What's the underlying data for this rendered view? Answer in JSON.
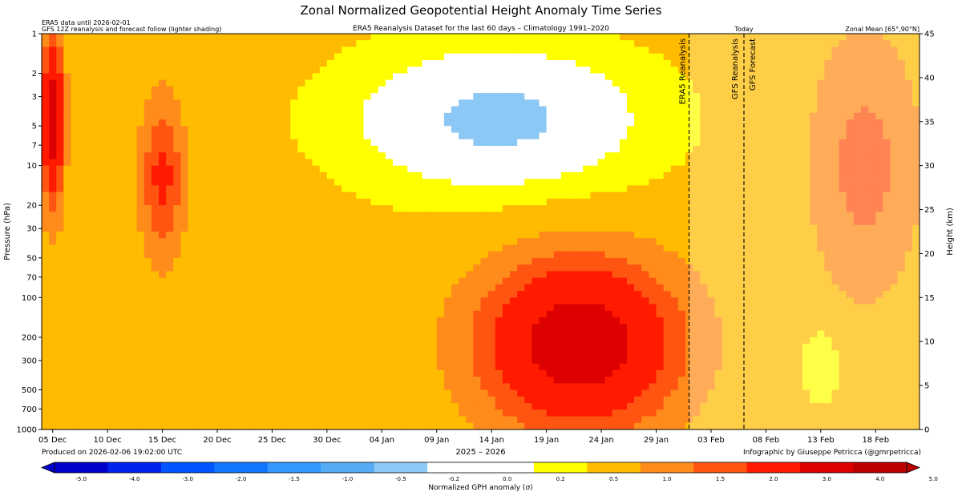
{
  "header": {
    "title": "Zonal Normalized Geopotential Height Anomaly Time Series",
    "info_line1": "ERA5 data until 2026-02-01",
    "info_line2": "GFS 12Z reanalysis and forecast follow (lighter shading)",
    "subtitle": "ERA5 Reanalysis Dataset for the last 60 days – Climatology 1991–2020",
    "zonal_mean": "Zonal Mean [65°,90°N]"
  },
  "footer": {
    "produced": "Produced on 2026-02-06 19:02:00 UTC",
    "credit": "Infographic by Giuseppe Petricca (@gmrpetricca)"
  },
  "chart_data": {
    "type": "heatmap",
    "title": "Zonal Normalized Geopotential Height Anomaly Time Series",
    "xlabel": "2025 – 2026",
    "ylabel": "Pressure (hPa)",
    "ylabel_right": "Height (km)",
    "x_ticks": [
      "05 Dec",
      "10 Dec",
      "15 Dec",
      "20 Dec",
      "25 Dec",
      "30 Dec",
      "04 Jan",
      "09 Jan",
      "14 Jan",
      "19 Jan",
      "24 Jan",
      "29 Jan",
      "03 Feb",
      "08 Feb",
      "13 Feb",
      "18 Feb"
    ],
    "x_range": [
      "2025-12-04",
      "2026-02-22"
    ],
    "y_ticks_hpa": [
      1000,
      700,
      500,
      300,
      200,
      100,
      70,
      50,
      30,
      20,
      10,
      7,
      5,
      3,
      2,
      1
    ],
    "y_scale": "log",
    "y_range_hpa": [
      1000,
      1
    ],
    "right_axis_km_ticks": [
      0,
      5,
      10,
      15,
      20,
      25,
      30,
      35,
      40,
      45
    ],
    "right_axis_km_range": [
      0,
      45
    ],
    "markers": [
      {
        "label": "ERA5 Reanalysis",
        "date": "2026-02-01",
        "style": "dashed"
      },
      {
        "label": "GFS Reanalysis",
        "date": "2026-02-06",
        "style": "dashed"
      },
      {
        "label": "GFS Forecast",
        "date": "2026-02-06",
        "style": "dashed"
      },
      {
        "label": "Today",
        "date": "2026-02-06",
        "style": "dashed"
      }
    ],
    "lighter_shading_from": "2026-02-01",
    "colorbar": {
      "label": "Normalized GPH anomaly (σ)",
      "levels": [
        -5.0,
        -4.0,
        -3.0,
        -2.0,
        -1.5,
        -1.0,
        -0.5,
        -0.2,
        0.0,
        0.2,
        0.5,
        1.0,
        1.5,
        2.0,
        3.0,
        4.0,
        5.0
      ],
      "tick_labels": [
        "-5.0",
        "-4.0",
        "-3.0",
        "-2.0",
        "-1.5",
        "-1.0",
        "-0.5",
        "-0.2",
        "0.0",
        "0.2",
        "0.5",
        "1.0",
        "1.5",
        "2.0",
        "3.0",
        "4.0",
        "5.0"
      ],
      "colors": [
        "#0000cc",
        "#0022ee",
        "#0055ff",
        "#1177ff",
        "#3399ff",
        "#55aaf5",
        "#8cc8f5",
        "#ffffff",
        "#ffffff",
        "#ffff00",
        "#ffbb00",
        "#ff8c1a",
        "#ff5511",
        "#ff1a00",
        "#dd0000",
        "#bb0000"
      ],
      "extend": "both"
    },
    "anomaly_regions": [
      {
        "name": "positive-early-december",
        "dates": [
          "2025-12-04",
          "2025-12-06"
        ],
        "levels_hpa": [
          1,
          20
        ],
        "value": 3.0
      },
      {
        "name": "positive-mid-december",
        "dates": [
          "2025-12-13",
          "2025-12-17"
        ],
        "levels_hpa": [
          3,
          50
        ],
        "value": 1.5
      },
      {
        "name": "negative-upper-january",
        "dates": [
          "2025-12-30",
          "2026-01-30"
        ],
        "levels_hpa": [
          1,
          20
        ],
        "value": -1.0
      },
      {
        "name": "positive-lower-late-january",
        "dates": [
          "2026-01-13",
          "2026-01-31"
        ],
        "levels_hpa": [
          50,
          1000
        ],
        "value": 3.0
      },
      {
        "name": "negative-surface-february",
        "dates": [
          "2026-02-11",
          "2026-02-15"
        ],
        "levels_hpa": [
          150,
          700
        ],
        "value": -0.5
      },
      {
        "name": "positive-late-february-upper",
        "dates": [
          "2026-02-12",
          "2026-02-22"
        ],
        "levels_hpa": [
          1,
          100
        ],
        "value": 1.0
      }
    ]
  }
}
